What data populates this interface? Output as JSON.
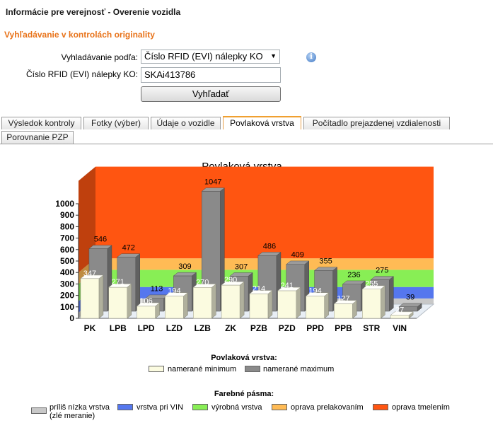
{
  "header": {
    "title": "Informácie pre verejnosť - Overenie vozidla",
    "subtitle": "Vyhľadávanie v kontrolách originality"
  },
  "form": {
    "search_by_label": "Vyhladávanie podľa:",
    "search_by_value": "Číslo RFID (EVI) nálepky KO",
    "rfid_label": "Číslo RFID (EVI) nálepky KO:",
    "rfid_value": "SKAi413786",
    "search_button": "Vyhľadať"
  },
  "tabs": [
    {
      "label": "Výsledok kontroly",
      "active": false
    },
    {
      "label": "Fotky (výber)",
      "active": false
    },
    {
      "label": "Údaje o vozidle",
      "active": false
    },
    {
      "label": "Povlaková vrstva",
      "active": true
    },
    {
      "label": "Počítadlo prejazdenej vzdialenosti",
      "active": false
    },
    {
      "label": "Porovnanie PZP",
      "active": false
    }
  ],
  "chart_data": {
    "type": "bar",
    "title": "Povlaková vrstva",
    "categories": [
      "PK",
      "LPB",
      "LPD",
      "LZD",
      "LZB",
      "ZK",
      "PZB",
      "PZD",
      "PPD",
      "PPB",
      "STR",
      "VIN"
    ],
    "series": [
      {
        "name": "namerané minimum",
        "values": [
          347,
          271,
          106,
          194,
          270,
          290,
          214,
          241,
          194,
          127,
          255,
          27
        ],
        "color": "#fbfbe0"
      },
      {
        "name": "namerané maximum",
        "values": [
          546,
          472,
          113,
          309,
          1047,
          307,
          486,
          409,
          355,
          236,
          275,
          39
        ],
        "color": "#8a8a8a"
      }
    ],
    "ylim": [
      0,
      1000
    ],
    "yticks": [
      "0",
      "100",
      "200",
      "300",
      "400",
      "500",
      "600",
      "700",
      "800",
      "900",
      "1000"
    ],
    "grid": false,
    "bands": [
      {
        "name": "príliš nízka vrstva (zlé meranie)",
        "from": 0,
        "to": 50,
        "color": "#c8c8c8"
      },
      {
        "name": "vrstva pri VIN",
        "from": 50,
        "to": 150,
        "color": "#5577ee"
      },
      {
        "name": "výrobná vrstva",
        "from": 150,
        "to": 300,
        "color": "#88ee55"
      },
      {
        "name": "oprava prelakovaním",
        "from": 300,
        "to": 400,
        "color": "#ffbb55"
      },
      {
        "name": "oprava tmelením",
        "from": 400,
        "to": 1100,
        "color": "#ff5511"
      }
    ],
    "legend1_title": "Povlaková vrstva:",
    "legend2_title": "Farebné pásma:"
  }
}
